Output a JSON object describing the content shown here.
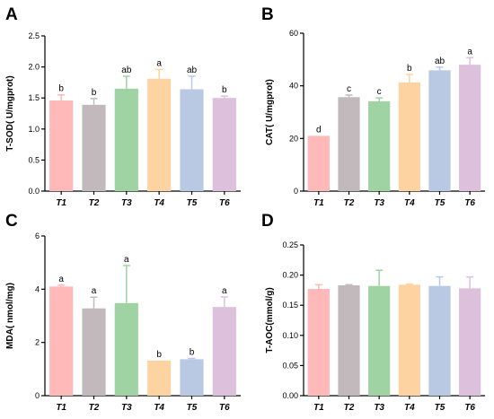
{
  "chart_data": [
    {
      "panel": "A",
      "type": "bar",
      "ylabel": "T-SOD( U/mgprot)",
      "categories": [
        "T1",
        "T2",
        "T3",
        "T4",
        "T5",
        "T6"
      ],
      "values": [
        1.46,
        1.39,
        1.65,
        1.81,
        1.64,
        1.5
      ],
      "errors": [
        0.09,
        0.1,
        0.2,
        0.15,
        0.21,
        0.03
      ],
      "significance": [
        "b",
        "b",
        "ab",
        "a",
        "ab",
        "b"
      ],
      "colors": [
        "#ffb9b9",
        "#c2b9bd",
        "#9fd3a3",
        "#fdd3a1",
        "#b9c9e4",
        "#dcc0dc"
      ],
      "ylim": [
        0,
        2.5
      ],
      "yticks": [
        "0.0",
        "0.5",
        "1.0",
        "1.5",
        "2.0",
        "2.5"
      ]
    },
    {
      "panel": "B",
      "type": "bar",
      "ylabel": "CAT( U/mgprot)",
      "categories": [
        "T1",
        "T2",
        "T3",
        "T4",
        "T5",
        "T6"
      ],
      "values": [
        21,
        35.7,
        34.1,
        41.3,
        45.9,
        48.0
      ],
      "errors": [
        0,
        0.8,
        1.3,
        3.0,
        1.2,
        2.7
      ],
      "significance": [
        "d",
        "c",
        "c",
        "b",
        "ab",
        "a"
      ],
      "colors": [
        "#ffb9b9",
        "#c2b9bd",
        "#9fd3a3",
        "#fdd3a1",
        "#b9c9e4",
        "#dcc0dc"
      ],
      "ylim": [
        0,
        60
      ],
      "yticks": [
        "0",
        "20",
        "40",
        "60"
      ]
    },
    {
      "panel": "C",
      "type": "bar",
      "ylabel": "MDA( nmol/mg)",
      "categories": [
        "T1",
        "T2",
        "T3",
        "T4",
        "T5",
        "T6"
      ],
      "values": [
        4.1,
        3.28,
        3.48,
        1.32,
        1.37,
        3.33
      ],
      "errors": [
        0.05,
        0.42,
        1.41,
        0,
        0.03,
        0.38
      ],
      "significance": [
        "a",
        "a",
        "a",
        "b",
        "b",
        "a"
      ],
      "colors": [
        "#ffb9b9",
        "#c2b9bd",
        "#9fd3a3",
        "#fdd3a1",
        "#b9c9e4",
        "#dcc0dc"
      ],
      "ylim": [
        0,
        6
      ],
      "yticks": [
        "0",
        "2",
        "4",
        "6"
      ]
    },
    {
      "panel": "D",
      "type": "bar",
      "ylabel": "T-AOC(mmol/g)",
      "categories": [
        "T1",
        "T2",
        "T3",
        "T4",
        "T5",
        "T6"
      ],
      "values": [
        0.177,
        0.183,
        0.182,
        0.184,
        0.182,
        0.178
      ],
      "errors": [
        0.007,
        0.001,
        0.026,
        0.001,
        0.015,
        0.019
      ],
      "significance": [
        "",
        "",
        "",
        "",
        "",
        ""
      ],
      "colors": [
        "#ffb9b9",
        "#c2b9bd",
        "#9fd3a3",
        "#fdd3a1",
        "#b9c9e4",
        "#dcc0dc"
      ],
      "ylim": [
        0,
        0.25
      ],
      "yticks": [
        "0.00",
        "0.05",
        "0.10",
        "0.15",
        "0.20",
        "0.25"
      ]
    }
  ]
}
